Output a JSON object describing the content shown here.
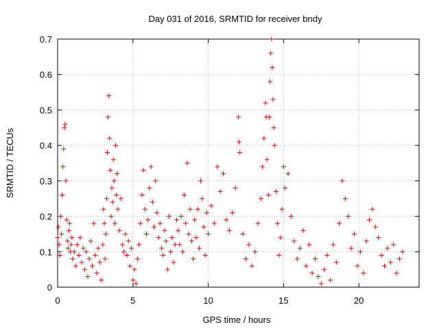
{
  "chart_data": {
    "type": "scatter",
    "title": "Day 031 of 2016, SRMTID for receiver bndy",
    "xlabel": "GPS time / hours",
    "ylabel": "SRMTID / TECUs",
    "xlim": [
      0,
      24
    ],
    "ylim": [
      0,
      0.7
    ],
    "xticks": [
      0,
      5,
      10,
      15,
      20
    ],
    "xtick_labels": [
      "0",
      "5",
      "10",
      "15",
      "20"
    ],
    "yticks": [
      0,
      0.1,
      0.2,
      0.3,
      0.4,
      0.5,
      0.6,
      0.7
    ],
    "ytick_labels": [
      "0",
      "0.1",
      "0.2",
      "0.3",
      "0.4",
      "0.5",
      "0.6",
      "0.7"
    ],
    "grid": true,
    "marker": "+",
    "color": "#e00000",
    "series": [
      {
        "name": "SRMTID",
        "points": [
          [
            0.0,
            0.14
          ],
          [
            0.05,
            0.17
          ],
          [
            0.1,
            0.12
          ],
          [
            0.15,
            0.09
          ],
          [
            0.2,
            0.2
          ],
          [
            0.25,
            0.15
          ],
          [
            0.3,
            0.26
          ],
          [
            0.35,
            0.34
          ],
          [
            0.4,
            0.39
          ],
          [
            0.45,
            0.45
          ],
          [
            0.5,
            0.46
          ],
          [
            0.55,
            0.3
          ],
          [
            0.6,
            0.19
          ],
          [
            0.65,
            0.13
          ],
          [
            0.7,
            0.11
          ],
          [
            0.75,
            0.16
          ],
          [
            0.8,
            0.18
          ],
          [
            0.85,
            0.1
          ],
          [
            0.9,
            0.12
          ],
          [
            0.95,
            0.14
          ],
          [
            1.0,
            0.08
          ],
          [
            1.1,
            0.1
          ],
          [
            1.2,
            0.06
          ],
          [
            1.3,
            0.12
          ],
          [
            1.4,
            0.09
          ],
          [
            1.5,
            0.14
          ],
          [
            1.6,
            0.07
          ],
          [
            1.7,
            0.11
          ],
          [
            1.8,
            0.05
          ],
          [
            1.9,
            0.1
          ],
          [
            2.0,
            0.03
          ],
          [
            2.1,
            0.08
          ],
          [
            2.2,
            0.13
          ],
          [
            2.3,
            0.06
          ],
          [
            2.4,
            0.18
          ],
          [
            2.5,
            0.09
          ],
          [
            2.6,
            0.04
          ],
          [
            2.7,
            0.11
          ],
          [
            2.8,
            0.07
          ],
          [
            2.9,
            0.02
          ],
          [
            3.0,
            0.12
          ],
          [
            3.05,
            0.22
          ],
          [
            3.1,
            0.18
          ],
          [
            3.15,
            0.08
          ],
          [
            3.2,
            0.15
          ],
          [
            3.25,
            0.25
          ],
          [
            3.3,
            0.38
          ],
          [
            3.35,
            0.48
          ],
          [
            3.4,
            0.54
          ],
          [
            3.45,
            0.42
          ],
          [
            3.5,
            0.33
          ],
          [
            3.55,
            0.2
          ],
          [
            3.6,
            0.28
          ],
          [
            3.65,
            0.24
          ],
          [
            3.7,
            0.36
          ],
          [
            3.75,
            0.3
          ],
          [
            3.8,
            0.18
          ],
          [
            3.85,
            0.4
          ],
          [
            3.9,
            0.26
          ],
          [
            3.95,
            0.32
          ],
          [
            4.0,
            0.22
          ],
          [
            4.1,
            0.16
          ],
          [
            4.2,
            0.25
          ],
          [
            4.3,
            0.12
          ],
          [
            4.4,
            0.1
          ],
          [
            4.5,
            0.15
          ],
          [
            4.6,
            0.09
          ],
          [
            4.7,
            0.13
          ],
          [
            4.8,
            0.06
          ],
          [
            4.9,
            0.11
          ],
          [
            5.0,
            0.02
          ],
          [
            5.1,
            0.05
          ],
          [
            5.2,
            0.01
          ],
          [
            5.3,
            0.08
          ],
          [
            5.4,
            0.12
          ],
          [
            5.5,
            0.18
          ],
          [
            5.6,
            0.26
          ],
          [
            5.7,
            0.33
          ],
          [
            5.8,
            0.22
          ],
          [
            5.9,
            0.15
          ],
          [
            6.0,
            0.19
          ],
          [
            6.1,
            0.28
          ],
          [
            6.2,
            0.34
          ],
          [
            6.3,
            0.24
          ],
          [
            6.4,
            0.17
          ],
          [
            6.5,
            0.3
          ],
          [
            6.6,
            0.21
          ],
          [
            6.7,
            0.14
          ],
          [
            6.8,
            0.18
          ],
          [
            6.9,
            0.11
          ],
          [
            7.0,
            0.09
          ],
          [
            7.1,
            0.16
          ],
          [
            7.2,
            0.13
          ],
          [
            7.3,
            0.05
          ],
          [
            7.4,
            0.2
          ],
          [
            7.5,
            0.1
          ],
          [
            7.6,
            0.14
          ],
          [
            7.7,
            0.07
          ],
          [
            7.8,
            0.12
          ],
          [
            7.9,
            0.19
          ],
          [
            8.0,
            0.16
          ],
          [
            8.1,
            0.12
          ],
          [
            8.2,
            0.2
          ],
          [
            8.3,
            0.1
          ],
          [
            8.4,
            0.26
          ],
          [
            8.5,
            0.18
          ],
          [
            8.6,
            0.35
          ],
          [
            8.7,
            0.15
          ],
          [
            8.8,
            0.22
          ],
          [
            8.9,
            0.13
          ],
          [
            9.0,
            0.08
          ],
          [
            9.1,
            0.19
          ],
          [
            9.2,
            0.14
          ],
          [
            9.3,
            0.22
          ],
          [
            9.4,
            0.11
          ],
          [
            9.5,
            0.3
          ],
          [
            9.6,
            0.25
          ],
          [
            9.7,
            0.17
          ],
          [
            9.8,
            0.09
          ],
          [
            9.9,
            0.21
          ],
          [
            10.0,
            0.15
          ],
          [
            10.2,
            0.23
          ],
          [
            10.4,
            0.18
          ],
          [
            10.6,
            0.34
          ],
          [
            10.8,
            0.27
          ],
          [
            11.0,
            0.32
          ],
          [
            11.2,
            0.19
          ],
          [
            11.4,
            0.16
          ],
          [
            11.6,
            0.21
          ],
          [
            11.8,
            0.28
          ],
          [
            12.0,
            0.48
          ],
          [
            12.05,
            0.41
          ],
          [
            12.1,
            0.38
          ],
          [
            12.3,
            0.15
          ],
          [
            12.5,
            0.08
          ],
          [
            12.7,
            0.12
          ],
          [
            12.9,
            0.06
          ],
          [
            13.1,
            0.1
          ],
          [
            13.3,
            0.18
          ],
          [
            13.5,
            0.25
          ],
          [
            13.6,
            0.34
          ],
          [
            13.7,
            0.42
          ],
          [
            13.8,
            0.52
          ],
          [
            13.85,
            0.48
          ],
          [
            13.9,
            0.36
          ],
          [
            14.0,
            0.26
          ],
          [
            14.05,
            0.48
          ],
          [
            14.1,
            0.58
          ],
          [
            14.15,
            0.66
          ],
          [
            14.2,
            0.7
          ],
          [
            14.25,
            0.62
          ],
          [
            14.3,
            0.53
          ],
          [
            14.35,
            0.45
          ],
          [
            14.4,
            0.4
          ],
          [
            14.5,
            0.27
          ],
          [
            14.6,
            0.18
          ],
          [
            14.7,
            0.09
          ],
          [
            14.8,
            0.14
          ],
          [
            14.9,
            0.22
          ],
          [
            15.0,
            0.34
          ],
          [
            15.1,
            0.28
          ],
          [
            15.3,
            0.32
          ],
          [
            15.5,
            0.2
          ],
          [
            15.7,
            0.13
          ],
          [
            15.9,
            0.08
          ],
          [
            16.1,
            0.11
          ],
          [
            16.3,
            0.16
          ],
          [
            16.5,
            0.06
          ],
          [
            16.7,
            0.12
          ],
          [
            16.9,
            0.04
          ],
          [
            17.1,
            0.08
          ],
          [
            17.3,
            0.03
          ],
          [
            17.5,
            0.01
          ],
          [
            17.7,
            0.05
          ],
          [
            17.9,
            0.09
          ],
          [
            18.1,
            0.02
          ],
          [
            18.3,
            0.12
          ],
          [
            18.5,
            0.07
          ],
          [
            18.7,
            0.18
          ],
          [
            18.9,
            0.3
          ],
          [
            19.1,
            0.25
          ],
          [
            19.3,
            0.2
          ],
          [
            19.5,
            0.11
          ],
          [
            19.7,
            0.15
          ],
          [
            19.9,
            0.06
          ],
          [
            20.1,
            0.1
          ],
          [
            20.3,
            0.04
          ],
          [
            20.5,
            0.13
          ],
          [
            20.7,
            0.19
          ],
          [
            20.9,
            0.22
          ],
          [
            21.1,
            0.17
          ],
          [
            21.3,
            0.14
          ],
          [
            21.5,
            0.09
          ],
          [
            21.7,
            0.06
          ],
          [
            21.9,
            0.11
          ],
          [
            22.1,
            0.07
          ],
          [
            22.3,
            0.12
          ],
          [
            22.5,
            0.04
          ],
          [
            22.7,
            0.08
          ],
          [
            22.9,
            0.1
          ]
        ]
      }
    ]
  }
}
